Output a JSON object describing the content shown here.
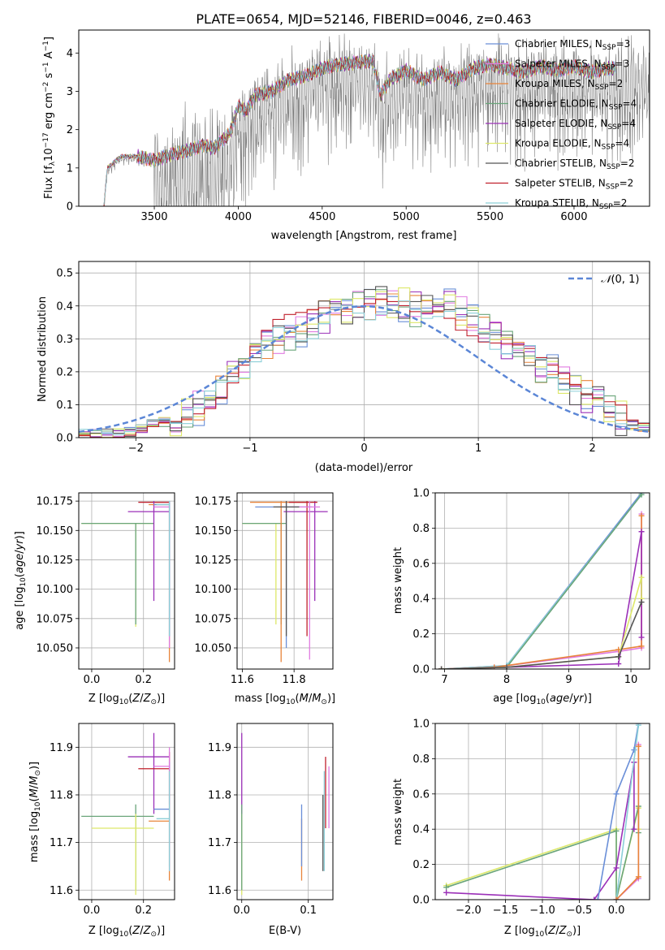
{
  "figure_title": "PLATE=0654, MJD=52146, FIBERID=0046, z=0.463",
  "colors": {
    "Chabrier MILES": "#6a8fd8",
    "Salpeter MILES": "#e07be0",
    "Kroupa MILES": "#e8843a",
    "Chabrier ELODIE": "#6aa57a",
    "Salpeter ELODIE": "#9b30b8",
    "Kroupa ELODIE": "#dde86a",
    "Chabrier STELIB": "#555555",
    "Salpeter STELIB": "#c0202c",
    "Kroupa STELIB": "#8ccfd8",
    "data": "#808080",
    "normal": "#5b86d6"
  },
  "chart_data": [
    {
      "id": "spectrum",
      "type": "line",
      "xlabel": "wavelength [Angstrom, rest frame]",
      "ylabel": "Flux [f$_\\lambda$10$^{-17}$ erg cm$^{-2}$ s$^{-1}$ A$^{-1}$]",
      "xlim": [
        3050,
        6450
      ],
      "ylim": [
        0,
        4.6
      ],
      "xticks": [
        3500,
        4000,
        4500,
        5000,
        5500,
        6000
      ],
      "yticks": [
        0,
        1,
        2,
        3,
        4
      ],
      "legend_position": "upper-right",
      "legend": [
        {
          "label": "Chabrier MILES, N",
          "sub": "SSP",
          "suffix": "=3",
          "key": "Chabrier MILES"
        },
        {
          "label": "Salpeter MILES, N",
          "sub": "SSP",
          "suffix": "=3",
          "key": "Salpeter MILES"
        },
        {
          "label": "Kroupa MILES, N",
          "sub": "SSP",
          "suffix": "=2",
          "key": "Kroupa MILES"
        },
        {
          "label": "Chabrier ELODIE, N",
          "sub": "SSP",
          "suffix": "=4",
          "key": "Chabrier ELODIE"
        },
        {
          "label": "Salpeter ELODIE, N",
          "sub": "SSP",
          "suffix": "=4",
          "key": "Salpeter ELODIE"
        },
        {
          "label": "Kroupa ELODIE, N",
          "sub": "SSP",
          "suffix": "=4",
          "key": "Kroupa ELODIE"
        },
        {
          "label": "Chabrier STELIB, N",
          "sub": "SSP",
          "suffix": "=2",
          "key": "Chabrier STELIB"
        },
        {
          "label": "Salpeter STELIB, N",
          "sub": "SSP",
          "suffix": "=2",
          "key": "Salpeter STELIB"
        },
        {
          "label": "Kroupa STELIB, N",
          "sub": "SSP",
          "suffix": "=2",
          "key": "Kroupa STELIB"
        }
      ],
      "model_continuum": {
        "x": [
          3200,
          3220,
          3300,
          3400,
          3500,
          3600,
          3700,
          3800,
          3850,
          3950,
          4000,
          4050,
          4100,
          4200,
          4300,
          4400,
          4500,
          4600,
          4700,
          4800,
          4850,
          4900,
          5000,
          5100,
          5200,
          5300,
          5400,
          5500,
          5600,
          5700,
          5800,
          5900,
          6000,
          6100,
          6200,
          6250
        ],
        "y": [
          0,
          1.0,
          1.3,
          1.3,
          1.2,
          1.35,
          1.45,
          1.6,
          1.5,
          1.9,
          2.6,
          2.5,
          2.9,
          3.0,
          3.3,
          3.4,
          3.6,
          3.7,
          3.75,
          3.8,
          2.9,
          3.3,
          3.55,
          3.3,
          3.5,
          3.3,
          3.6,
          3.7,
          3.6,
          3.5,
          3.65,
          3.55,
          3.65,
          3.5,
          3.6,
          3.6
        ]
      }
    },
    {
      "id": "residuals",
      "type": "histogram",
      "xlabel": "(data-model)/error",
      "ylabel": "Normed distribution",
      "xlim": [
        -2.5,
        2.5
      ],
      "ylim": [
        0,
        0.535
      ],
      "xticks": [
        -2,
        -1,
        0,
        1,
        2
      ],
      "yticks": [
        0.0,
        0.1,
        0.2,
        0.3,
        0.4,
        0.5
      ],
      "bin_edges_start": -2.5,
      "bin_width": 0.1,
      "legend_position": "upper-right",
      "normal_label": "$\\mathcal{N}(0, 1)$",
      "normal_label_text": "(0, 1)",
      "base_histogram": [
        0.01,
        0.01,
        0.01,
        0.015,
        0.02,
        0.03,
        0.04,
        0.05,
        0.06,
        0.07,
        0.09,
        0.11,
        0.14,
        0.18,
        0.22,
        0.26,
        0.29,
        0.31,
        0.32,
        0.33,
        0.35,
        0.37,
        0.38,
        0.39,
        0.4,
        0.41,
        0.42,
        0.41,
        0.4,
        0.39,
        0.4,
        0.42,
        0.41,
        0.38,
        0.36,
        0.33,
        0.31,
        0.29,
        0.27,
        0.25,
        0.22,
        0.2,
        0.18,
        0.15,
        0.12,
        0.1,
        0.08,
        0.06,
        0.04,
        0.03
      ]
    },
    {
      "id": "age-vs-Z",
      "type": "errorbar",
      "xlabel": "Z [log$_{10}$($Z/Z_\\odot$)]",
      "ylabel": "age  [log$_{10}$($age/yr$)]",
      "xlim": [
        -0.05,
        0.32
      ],
      "ylim": [
        10.032,
        10.182
      ],
      "xticks": [
        0.0,
        0.2
      ],
      "yticks": [
        10.05,
        10.075,
        10.1,
        10.125,
        10.15,
        10.175
      ],
      "points": [
        {
          "key": "Kroupa ELODIE",
          "x": 0.17,
          "y": 10.156,
          "x0": -0.04,
          "x1": 0.24,
          "y0": 10.068,
          "y1": 10.156
        },
        {
          "key": "Chabrier ELODIE",
          "x": 0.17,
          "y": 10.156,
          "x0": -0.04,
          "x1": 0.24,
          "y0": 10.07,
          "y1": 10.156
        },
        {
          "key": "Salpeter STELIB",
          "x": 0.3,
          "y": 10.174,
          "x0": 0.18,
          "x1": 0.3,
          "y0": 10.06,
          "y1": 10.174
        },
        {
          "key": "Salpeter ELODIE",
          "x": 0.24,
          "y": 10.166,
          "x0": 0.14,
          "x1": 0.3,
          "y0": 10.09,
          "y1": 10.175
        },
        {
          "key": "Kroupa MILES",
          "x": 0.3,
          "y": 10.172,
          "x0": 0.22,
          "x1": 0.3,
          "y0": 10.038,
          "y1": 10.175
        },
        {
          "key": "Salpeter MILES",
          "x": 0.3,
          "y": 10.17,
          "x0": 0.24,
          "x1": 0.3,
          "y0": 10.05,
          "y1": 10.175
        },
        {
          "key": "Chabrier MILES",
          "x": 0.3,
          "y": 10.172,
          "x0": 0.24,
          "x1": 0.3,
          "y0": 10.06,
          "y1": 10.175
        },
        {
          "key": "Kroupa STELIB",
          "x": 0.3,
          "y": 10.172,
          "x0": 0.25,
          "x1": 0.3,
          "y0": 10.06,
          "y1": 10.175
        }
      ]
    },
    {
      "id": "age-vs-mass",
      "type": "errorbar",
      "xlabel": "mass [log$_{10}$($M/M_\\odot$)]",
      "ylabel": "",
      "xlim": [
        11.58,
        11.95
      ],
      "ylim": [
        10.032,
        10.182
      ],
      "xticks": [
        11.6,
        11.8
      ],
      "yticks": [
        10.05,
        10.075,
        10.1,
        10.125,
        10.15,
        10.175
      ],
      "points": [
        {
          "key": "Kroupa ELODIE",
          "x": 11.73,
          "y": 10.156,
          "x0": 11.6,
          "x1": 11.76,
          "y0": 10.07,
          "y1": 10.156
        },
        {
          "key": "Chabrier ELODIE",
          "x": 11.75,
          "y": 10.156,
          "x0": 11.6,
          "x1": 11.77,
          "y0": 10.07,
          "y1": 10.156
        },
        {
          "key": "Chabrier MILES",
          "x": 11.77,
          "y": 10.17,
          "x0": 11.65,
          "x1": 11.87,
          "y0": 10.05,
          "y1": 10.175
        },
        {
          "key": "Kroupa MILES",
          "x": 11.75,
          "y": 10.174,
          "x0": 11.63,
          "x1": 11.85,
          "y0": 10.038,
          "y1": 10.175
        },
        {
          "key": "Salpeter ELODIE",
          "x": 11.88,
          "y": 10.166,
          "x0": 11.76,
          "x1": 11.93,
          "y0": 10.09,
          "y1": 10.175
        },
        {
          "key": "Salpeter STELIB",
          "x": 11.85,
          "y": 10.174,
          "x0": 11.78,
          "x1": 11.89,
          "y0": 10.06,
          "y1": 10.175
        },
        {
          "key": "Salpeter MILES",
          "x": 11.86,
          "y": 10.17,
          "x0": 11.79,
          "x1": 11.9,
          "y0": 10.04,
          "y1": 10.175
        },
        {
          "key": "Chabrier STELIB",
          "x": 11.77,
          "y": 10.17,
          "x0": 11.72,
          "x1": 11.82,
          "y0": 10.06,
          "y1": 10.175
        }
      ]
    },
    {
      "id": "massweight-vs-age",
      "type": "line",
      "xlabel": "age  [log$_{10}$($age/yr$)]",
      "ylabel": "mass weight",
      "xlim": [
        6.85,
        10.3
      ],
      "ylim": [
        0,
        1
      ],
      "xticks": [
        7,
        8,
        9,
        10
      ],
      "yticks": [
        0.0,
        0.2,
        0.4,
        0.6,
        0.8,
        1.0
      ],
      "series": [
        {
          "key": "Chabrier MILES",
          "x": [
            6.95,
            8.0,
            10.17
          ],
          "y": [
            0.0,
            0.02,
            1.0
          ]
        },
        {
          "key": "Kroupa STELIB",
          "x": [
            6.95,
            8.0,
            10.17
          ],
          "y": [
            0.0,
            0.02,
            0.99
          ]
        },
        {
          "key": "Chabrier ELODIE",
          "x": [
            6.95,
            8.0,
            10.17
          ],
          "y": [
            0.0,
            0.01,
            0.99
          ]
        },
        {
          "key": "Salpeter MILES",
          "x": [
            6.95,
            7.8,
            9.8,
            10.17,
            10.17
          ],
          "y": [
            0.0,
            0.01,
            0.1,
            0.12,
            0.88
          ]
        },
        {
          "key": "Kroupa MILES",
          "x": [
            6.95,
            7.8,
            9.8,
            10.17,
            10.17
          ],
          "y": [
            0.0,
            0.01,
            0.11,
            0.13,
            0.87
          ]
        },
        {
          "key": "Salpeter ELODIE",
          "x": [
            6.95,
            8.0,
            9.8,
            10.17,
            10.17
          ],
          "y": [
            0.0,
            0.01,
            0.03,
            0.78,
            0.18
          ]
        },
        {
          "key": "Kroupa ELODIE",
          "x": [
            6.95,
            8.0,
            9.8,
            10.17,
            10.17
          ],
          "y": [
            0.0,
            0.01,
            0.07,
            0.52,
            0.4
          ]
        },
        {
          "key": "Chabrier STELIB",
          "x": [
            6.95,
            8.0,
            9.8,
            10.17
          ],
          "y": [
            0.0,
            0.01,
            0.07,
            0.38
          ]
        }
      ]
    },
    {
      "id": "mass-vs-Z",
      "type": "errorbar",
      "xlabel": "Z [log$_{10}$($Z/Z_\\odot$)]",
      "ylabel": "mass [log$_{10}$($M/M_\\odot$)]",
      "xlim": [
        -0.05,
        0.32
      ],
      "ylim": [
        11.58,
        11.95
      ],
      "xticks": [
        0.0,
        0.2
      ],
      "yticks": [
        11.6,
        11.7,
        11.8,
        11.9
      ],
      "points": [
        {
          "key": "Chabrier ELODIE",
          "x": 0.17,
          "y": 11.755,
          "x0": -0.04,
          "x1": 0.24,
          "y0": 11.6,
          "y1": 11.78
        },
        {
          "key": "Kroupa ELODIE",
          "x": 0.17,
          "y": 11.73,
          "x0": 0.0,
          "x1": 0.24,
          "y0": 11.59,
          "y1": 11.76
        },
        {
          "key": "Salpeter ELODIE",
          "x": 0.24,
          "y": 11.88,
          "x0": 0.14,
          "x1": 0.3,
          "y0": 11.76,
          "y1": 11.93
        },
        {
          "key": "Salpeter STELIB",
          "x": 0.3,
          "y": 11.855,
          "x0": 0.18,
          "x1": 0.3,
          "y0": 11.78,
          "y1": 11.89
        },
        {
          "key": "Chabrier MILES",
          "x": 0.3,
          "y": 11.77,
          "x0": 0.24,
          "x1": 0.3,
          "y0": 11.65,
          "y1": 11.87
        },
        {
          "key": "Kroupa MILES",
          "x": 0.3,
          "y": 11.745,
          "x0": 0.22,
          "x1": 0.3,
          "y0": 11.62,
          "y1": 11.85
        },
        {
          "key": "Salpeter MILES",
          "x": 0.3,
          "y": 11.86,
          "x0": 0.24,
          "x1": 0.3,
          "y0": 11.64,
          "y1": 11.9
        },
        {
          "key": "Kroupa STELIB",
          "x": 0.3,
          "y": 11.75,
          "x0": 0.25,
          "x1": 0.3,
          "y0": 11.64,
          "y1": 11.85
        }
      ]
    },
    {
      "id": "mass-vs-ebv",
      "type": "errorbar",
      "xlabel": "E(B-V)",
      "ylabel": "",
      "xlim": [
        -0.007,
        0.137
      ],
      "ylim": [
        11.58,
        11.95
      ],
      "xticks": [
        0.0,
        0.1
      ],
      "yticks": [
        11.6,
        11.7,
        11.8,
        11.9
      ],
      "points": [
        {
          "key": "Salpeter ELODIE",
          "x": 0.0,
          "y": 11.88,
          "x0": 0.0,
          "x1": 0.0,
          "y0": 11.76,
          "y1": 11.93
        },
        {
          "key": "Kroupa ELODIE",
          "x": 0.0,
          "y": 11.73,
          "x0": 0.0,
          "x1": 0.0,
          "y0": 11.59,
          "y1": 11.76
        },
        {
          "key": "Chabrier ELODIE",
          "x": 0.0,
          "y": 11.755,
          "x0": 0.0,
          "x1": 0.0,
          "y0": 11.6,
          "y1": 11.78
        },
        {
          "key": "Kroupa MILES",
          "x": 0.09,
          "y": 11.7,
          "x0": 0.09,
          "x1": 0.09,
          "y0": 11.62,
          "y1": 11.75
        },
        {
          "key": "Chabrier MILES",
          "x": 0.09,
          "y": 11.73,
          "x0": 0.09,
          "x1": 0.09,
          "y0": 11.65,
          "y1": 11.78
        },
        {
          "key": "Chabrier STELIB",
          "x": 0.122,
          "y": 11.72,
          "x0": 0.122,
          "x1": 0.122,
          "y0": 11.64,
          "y1": 11.8
        },
        {
          "key": "Salpeter STELIB",
          "x": 0.126,
          "y": 11.8,
          "x0": 0.126,
          "x1": 0.126,
          "y0": 11.73,
          "y1": 11.88
        },
        {
          "key": "Salpeter MILES",
          "x": 0.131,
          "y": 11.79,
          "x0": 0.131,
          "x1": 0.131,
          "y0": 11.73,
          "y1": 11.86
        },
        {
          "key": "Kroupa STELIB",
          "x": 0.124,
          "y": 11.76,
          "x0": 0.124,
          "x1": 0.124,
          "y0": 11.64,
          "y1": 11.85
        }
      ]
    },
    {
      "id": "massweight-vs-Z",
      "type": "line",
      "xlabel": "Z [log$_{10}$($Z/Z_\\odot$)]",
      "ylabel": "mass weight",
      "xlim": [
        -2.45,
        0.45
      ],
      "ylim": [
        0,
        1
      ],
      "xticks": [
        -2.0,
        -1.5,
        -1.0,
        -0.5,
        0.0
      ],
      "yticks": [
        0.0,
        0.2,
        0.4,
        0.6,
        0.8,
        1.0
      ],
      "series": [
        {
          "key": "Kroupa ELODIE",
          "x": [
            -2.3,
            0.0,
            0.0,
            0.3,
            0.3
          ],
          "y": [
            0.08,
            0.4,
            0.0,
            0.52,
            0.4
          ]
        },
        {
          "key": "Chabrier ELODIE",
          "x": [
            -2.3,
            0.0,
            0.0,
            0.3,
            0.3
          ],
          "y": [
            0.07,
            0.39,
            0.0,
            0.53,
            0.38
          ]
        },
        {
          "key": "Salpeter ELODIE",
          "x": [
            -2.3,
            -0.3,
            0.0,
            0.24,
            0.24
          ],
          "y": [
            0.04,
            0.0,
            0.18,
            0.78,
            0.4
          ]
        },
        {
          "key": "Chabrier MILES",
          "x": [
            -0.25,
            0.0,
            0.24,
            0.3
          ],
          "y": [
            0.0,
            0.6,
            0.85,
            1.0
          ]
        },
        {
          "key": "Kroupa STELIB",
          "x": [
            0.0,
            0.3
          ],
          "y": [
            0.0,
            0.99
          ]
        },
        {
          "key": "Salpeter MILES",
          "x": [
            0.0,
            0.3,
            0.3
          ],
          "y": [
            0.0,
            0.12,
            0.88
          ]
        },
        {
          "key": "Kroupa MILES",
          "x": [
            0.0,
            0.3,
            0.3
          ],
          "y": [
            0.0,
            0.13,
            0.87
          ]
        }
      ]
    }
  ]
}
